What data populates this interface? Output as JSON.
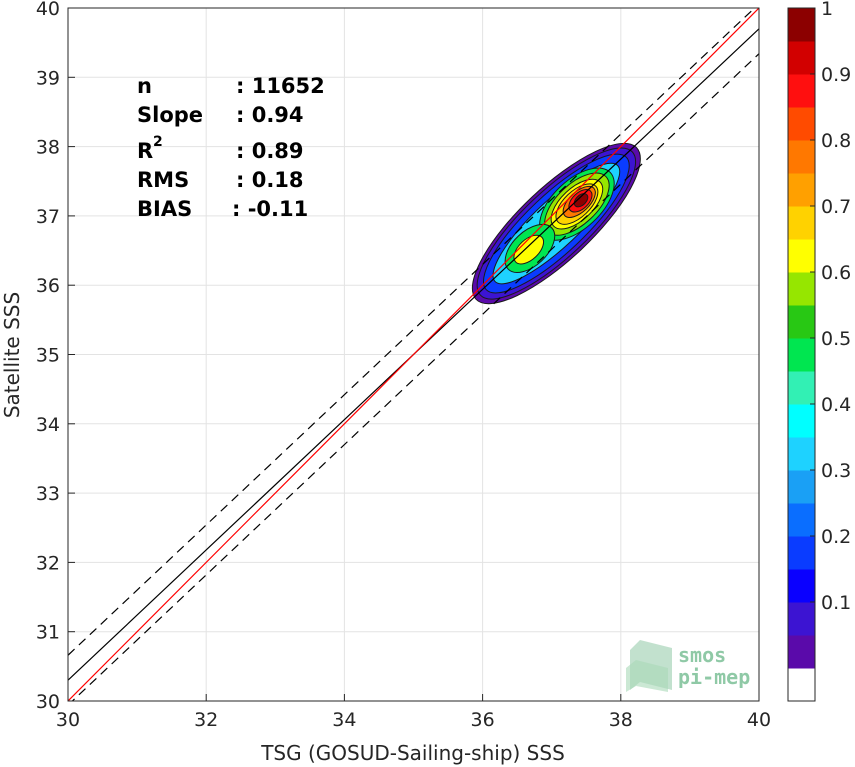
{
  "chart_data": {
    "type": "scatter",
    "subtype": "density-contour",
    "xlabel": "TSG (GOSUD-Sailing-ship) SSS",
    "ylabel": "Satellite SSS",
    "xlim": [
      30,
      40
    ],
    "ylim": [
      30,
      40
    ],
    "xticks": [
      "30",
      "32",
      "34",
      "36",
      "38",
      "40"
    ],
    "yticks": [
      "30",
      "31",
      "32",
      "33",
      "34",
      "35",
      "36",
      "37",
      "38",
      "39",
      "40"
    ],
    "grid": true,
    "stats": [
      {
        "label": "n",
        "value": ": 11652"
      },
      {
        "label": "Slope",
        "value": ": 0.94"
      },
      {
        "label": "R",
        "sup": "2",
        "value": ": 0.89"
      },
      {
        "label": "RMS",
        "value": ": 0.18"
      },
      {
        "label": "BIAS",
        "value": ": -0.11"
      }
    ],
    "lines": {
      "identity": {
        "color": "#ff0000",
        "x": [
          30,
          40
        ],
        "y": [
          30,
          40
        ]
      },
      "fit": {
        "color": "#000000",
        "x": [
          30,
          40
        ],
        "y": [
          30.3,
          39.7
        ]
      },
      "fit_upper": {
        "color": "#000000",
        "dash": true,
        "x": [
          30,
          40
        ],
        "y": [
          30.66,
          40.06
        ]
      },
      "fit_lower": {
        "color": "#000000",
        "dash": true,
        "x": [
          30,
          40
        ],
        "y": [
          29.94,
          39.34
        ]
      }
    },
    "density_peaks": [
      {
        "x": 37.45,
        "y": 37.25,
        "level": 1.0
      },
      {
        "x": 36.6,
        "y": 36.45,
        "level": 0.65
      }
    ],
    "colorbar": {
      "ticks": [
        "0.1",
        "0.2",
        "0.3",
        "0.4",
        "0.5",
        "0.6",
        "0.7",
        "0.8",
        "0.9",
        "1"
      ],
      "colors": [
        "#ffffff",
        "#5a0aaa",
        "#3c14d2",
        "#0a00ff",
        "#0a3cff",
        "#0a6eff",
        "#1aa0f5",
        "#1ed2ff",
        "#00ffff",
        "#32f0b4",
        "#00e650",
        "#28c814",
        "#96e600",
        "#ffff00",
        "#ffd200",
        "#ffa000",
        "#ff7800",
        "#ff4b00",
        "#ff0f0f",
        "#d20000",
        "#8c0000"
      ]
    },
    "watermark": [
      "smos",
      "pi-mep"
    ]
  }
}
